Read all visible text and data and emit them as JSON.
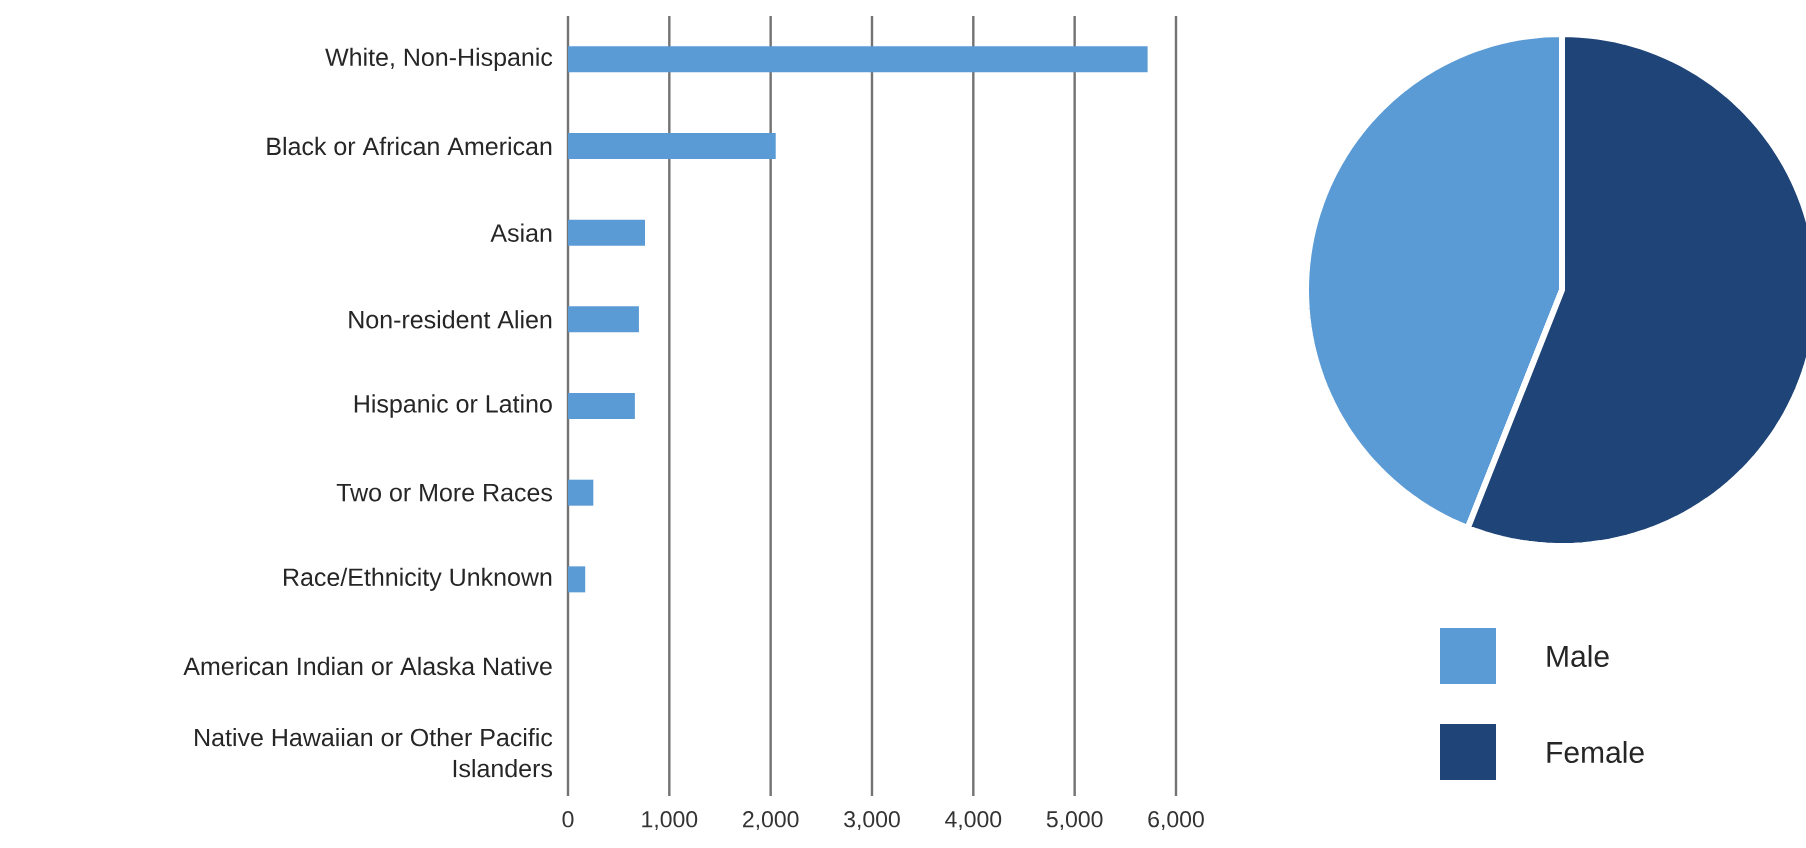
{
  "chart_data": [
    {
      "type": "bar",
      "orientation": "horizontal",
      "categories": [
        "White, Non-Hispanic",
        "Black or African American",
        "Asian",
        "Non-resident Alien",
        "Hispanic or Latino",
        "Two or More Races",
        "Race/Ethnicity Unknown",
        "American Indian or Alaska Native",
        "Native Hawaiian or Other Pacific Islanders"
      ],
      "values": [
        5720,
        2050,
        760,
        700,
        660,
        250,
        170,
        0,
        0
      ],
      "color": "#5b9bd5",
      "xlim": [
        0,
        6000
      ],
      "xticks": [
        0,
        {
          "value": 1000,
          "label": "1,000"
        },
        {
          "value": 2000,
          "label": "2,000"
        },
        {
          "value": 3000,
          "label": "3,000"
        },
        {
          "value": 4000,
          "label": "4,000"
        },
        {
          "value": 5000,
          "label": "5,000"
        },
        {
          "value": 6000,
          "label": "6,000"
        }
      ],
      "grid": "x"
    },
    {
      "type": "pie",
      "categories": [
        "Male",
        "Female"
      ],
      "values": [
        44,
        56
      ],
      "colors": [
        "#5b9bd5",
        "#1f4477"
      ],
      "legend": "bottom"
    }
  ]
}
